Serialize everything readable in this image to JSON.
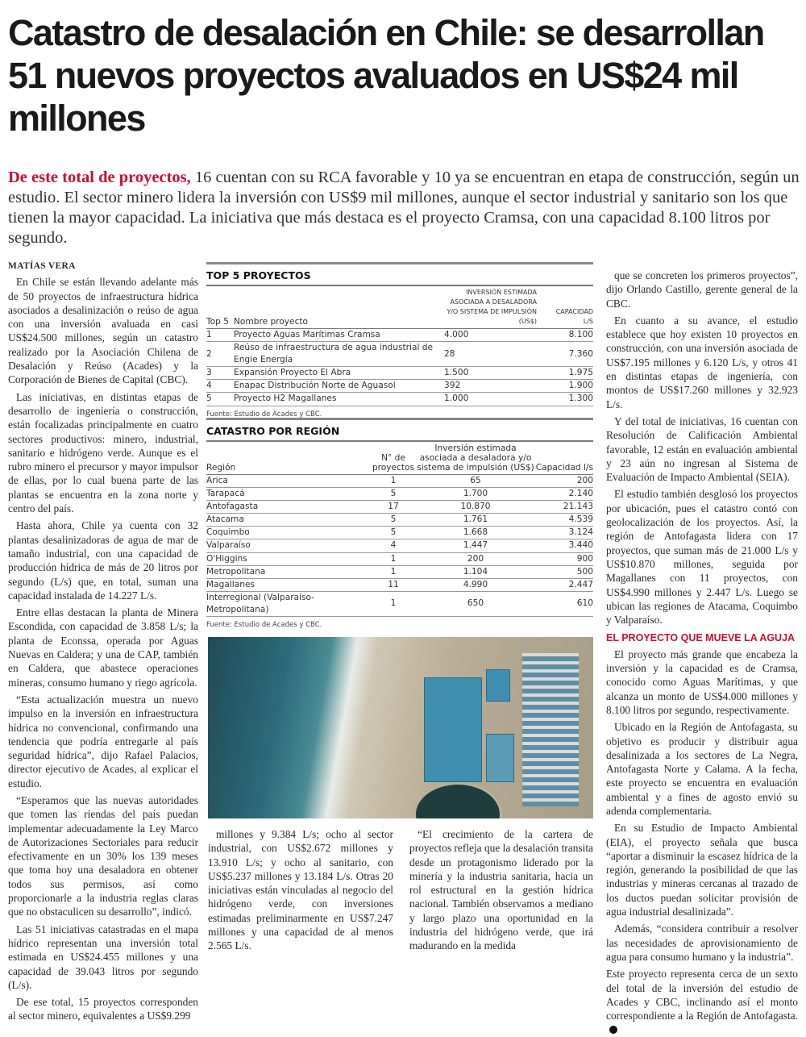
{
  "headline": "Catastro de desalación en Chile: se desarrollan 51 nuevos proyectos avaluados en US$24 mil millones",
  "lead": {
    "kicker": "De este total de proyectos,",
    "text": " 16 cuentan con su RCA favorable y 10 ya se encuentran en etapa de construcción, según un estudio. El sector minero lidera la inversión con US$9 mil millones, aunque el sector industrial y sanitario son los que tienen la mayor capacidad. La iniciativa que más destaca es el proyecto Cramsa, con una capacidad 8.100 litros por segundo."
  },
  "byline": "MATÍAS VERA",
  "col1": [
    "En Chile se están llevando adelante más de 50 proyectos de infraestructura hídrica asociados a desalinización o reúso de agua con una inversión avaluada en casi US$24.500 millones, según un catastro realizado por la Asociación Chilena de Desalación y Reúso (Acades) y la Corporación de Bienes de Capital (CBC).",
    "Las iniciativas, en distintas etapas de desarrollo de ingeniería o construcción, están focalizadas principalmente en cuatro sectores productivos: minero, industrial, sanitario e hidrógeno verde. Aunque es el rubro minero el precursor y mayor impulsor de ellas, por lo cual buena parte de las plantas se encuentra en la zona norte y centro del país.",
    "Hasta ahora, Chile ya cuenta con 32 plantas desalinizadoras de agua de mar de tamaño industrial, con una capacidad de producción hídrica de más de 20 litros por segundo (L/s) que, en total, suman una capacidad instalada de 14.227 L/s.",
    "Entre ellas destacan la planta de Minera Escondida, con capacidad de 3.858 L/s; la planta de Econssa, operada por Aguas Nuevas en Caldera; y una de CAP, también en Caldera, que abastece operaciones mineras, consumo humano y riego agrícola.",
    "“Esta actualización muestra un nuevo impulso en la inversión en infraestructura hídrica no convencional, confirmando una tendencia que podría entregarle al país seguridad hídrica”, dijo Rafael Palacios, director ejecutivo de Acades, al explicar el estudio.",
    "“Esperamos que las nuevas autoridades que tomen las riendas del país puedan implementar adecuadamente la Ley Marco de Autorizaciones Sectoriales para reducir efectivamente en un 30% los 139 meses que toma hoy una desaladora en obtener todos sus permisos, así como proporcionarle a la industria reglas claras que no obstaculicen su desarrollo”, indicó.",
    "Las 51 iniciativas catastradas en el mapa hídrico representan una inversión total estimada en US$24.455 millones y una capacidad de 39.043 litros por segundo (L/s).",
    "De ese total, 15 proyectos corresponden al sector minero, equivalentes a US$9.299"
  ],
  "col2": [
    "millones y 9.384 L/s; ocho al sector industrial, con US$2.672 millones y 13.910 L/s; y ocho al sanitario, con US$5.237 millones y 13.184 L/s. Otras 20 iniciativas están vinculadas al negocio del hidrógeno verde, con inversiones estimadas preliminarmente en US$7.247 millones y una capacidad de al menos 2.565 L/s."
  ],
  "col3": [
    "“El crecimiento de la cartera de proyectos refleja que la desalación transita desde un protagonismo liderado por la minería y la industria sanitaria, hacia un rol estructural en la gestión hídrica nacional. También observamos a mediano y largo plazo una oportunidad en la industria del hidrógeno verde, que irá madurando en la medida"
  ],
  "col4": [
    "que se concreten los primeros proyectos”, dijo Orlando Castillo, gerente general de la CBC.",
    "En cuanto a su avance, el estudio establece que hoy existen 10 proyectos en construcción, con una inversión asociada de US$7.195 millones y 6.120 L/s, y otros 41 en distintas etapas de ingeniería, con montos de US$17.260 millones y 32.923 L/s.",
    "Y del total de iniciativas, 16 cuentan con Resolución de Calificación Ambiental favorable, 12 están en evaluación ambiental y 23 aún no ingresan al Sistema de Evaluación de Impacto Ambiental (SEIA).",
    "El estudio también desglosó los proyectos por ubicación, pues el catastro contó con geolocalización de los proyectos. Así, la región de Antofagasta lidera con 17 proyectos, que suman más de 21.000 L/s y US$10.870 millones, seguida por Magallanes con 11 proyectos, con US$4.990 millones y 2.447 L/s. Luego se ubican las regiones de Atacama, Coquimbo y Valparaíso."
  ],
  "subhead": "EL PROYECTO QUE MUEVE LA AGUJA",
  "col4b": [
    "El proyecto más grande que encabeza la inversión y la capacidad es de Cramsa, conocido como Aguas Marítimas, y que alcanza un monto de US$4.000 millones y 8.100 litros por segundo, respectivamente.",
    "Ubicado en la Región de Antofagasta, su objetivo es producir y distribuir agua desalinizada a los sectores de La Negra, Antofagasta Norte y Calama. A la fecha, este proyecto se encuentra en evaluación ambiental y a fines de agosto envió su adenda complementaria.",
    "En su Estudio de Impacto Ambiental (EIA), el proyecto señala que busca “aportar a disminuir la escasez hídrica de la región, generando la posibilidad de que las industrias y mineras cercanas al trazado de los ductos puedan solicitar provisión de agua industrial desalinizada”.",
    "Además, “considera contribuir a resolver las necesidades de aprovisionamiento de agua para consumo humano y la industria”.",
    "Este proyecto representa cerca de un sexto del total de la inversión del estudio de Acades y CBC, inclinando así el monto correspondiente a la Región de Antofagasta."
  ],
  "top5": {
    "title": "TOP 5 PROYECTOS",
    "headers": [
      "Top 5",
      "Nombre proyecto",
      "Inversión estimada asociada a desaladora y/o sistema de impulsión (US$)",
      "Capacidad l/s"
    ],
    "rows": [
      [
        "1",
        "Proyecto Aguas Marítimas Cramsa",
        "4.000",
        "8.100"
      ],
      [
        "2",
        "Reúso de infraestructura de agua industrial de Engie Energía",
        "28",
        "7.360"
      ],
      [
        "3",
        "Expansión Proyecto El Abra",
        "1.500",
        "1.975"
      ],
      [
        "4",
        "Enapac Distribución Norte de Aguasol",
        "392",
        "1.900"
      ],
      [
        "5",
        "Proyecto H2 Magallanes",
        "1.000",
        "1.300"
      ]
    ],
    "source": "Fuente: Estudio de Acades y CBC."
  },
  "region": {
    "title": "CATASTRO POR REGIÓN",
    "headers": [
      "Región",
      "N° de proyectos",
      "Inversión estimada asociada a desaladora y/o sistema de impulsión (US$)",
      "Capacidad l/s"
    ],
    "rows": [
      [
        "Arica",
        "1",
        "65",
        "200"
      ],
      [
        "Tarapacá",
        "5",
        "1.700",
        "2.140"
      ],
      [
        "Antofagasta",
        "17",
        "10.870",
        "21.143"
      ],
      [
        "Atacama",
        "5",
        "1.761",
        "4.539"
      ],
      [
        "Coquimbo",
        "5",
        "1.668",
        "3.124"
      ],
      [
        "Valparaíso",
        "4",
        "1.447",
        "3.440"
      ],
      [
        "O'Higgins",
        "1",
        "200",
        "900"
      ],
      [
        "Metropolitana",
        "1",
        "1.104",
        "500"
      ],
      [
        "Magallanes",
        "11",
        "4.990",
        "2.447"
      ],
      [
        "Interregional (Valparaíso- Metropolitana)",
        "1",
        "650",
        "610"
      ]
    ],
    "source": "Fuente: Estudio de Acades y CBC."
  },
  "colors": {
    "accent": "#c8102e"
  }
}
